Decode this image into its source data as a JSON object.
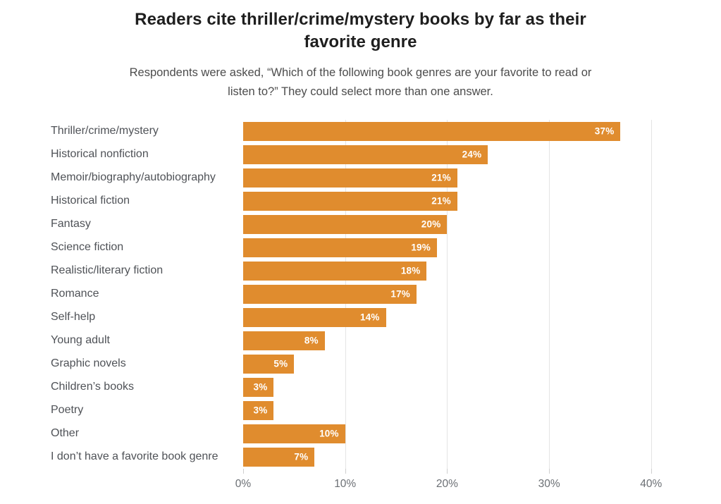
{
  "header": {
    "title": "Readers cite thriller/crime/mystery books by far as their favorite genre",
    "subtitle": "Respondents were asked, “Which of the following book genres are your favorite to read or listen to?” They could select more than one answer."
  },
  "chart_data": {
    "type": "bar",
    "orientation": "horizontal",
    "title": "Readers cite thriller/crime/mystery books by far as their favorite genre",
    "subtitle": "Respondents were asked, “Which of the following book genres are your favorite to read or listen to?” They could select more than one answer.",
    "categories": [
      "Thriller/crime/mystery",
      "Historical nonfiction",
      "Memoir/biography/autobiography",
      "Historical fiction",
      "Fantasy",
      "Science fiction",
      "Realistic/literary fiction",
      "Romance",
      "Self-help",
      "Young adult",
      "Graphic novels",
      "Children’s books",
      "Poetry",
      "Other",
      "I don’t have a favorite book genre"
    ],
    "values": [
      37,
      24,
      21,
      21,
      20,
      19,
      18,
      17,
      14,
      8,
      5,
      3,
      3,
      10,
      7
    ],
    "value_labels": [
      "37%",
      "24%",
      "21%",
      "21%",
      "20%",
      "19%",
      "18%",
      "17%",
      "14%",
      "8%",
      "5%",
      "3%",
      "3%",
      "10%",
      "7%"
    ],
    "xlabel": "",
    "ylabel": "",
    "xlim": [
      0,
      42.5
    ],
    "x_tick_values": [
      0,
      10,
      20,
      30,
      40
    ],
    "x_tick_labels": [
      "0%",
      "10%",
      "20%",
      "30%",
      "40%"
    ],
    "grid": "vertical-only",
    "legend": "none"
  },
  "colors": {
    "bar": "#e08c2e",
    "value_label": "#ffffff",
    "gridline": "#e4e4e4",
    "tick": "#cfcfcf",
    "title": "#1e1e1e",
    "subtitle": "#4c4c4c",
    "category_label": "#4f5257",
    "axis_label": "#6b6f74",
    "background": "#ffffff"
  }
}
